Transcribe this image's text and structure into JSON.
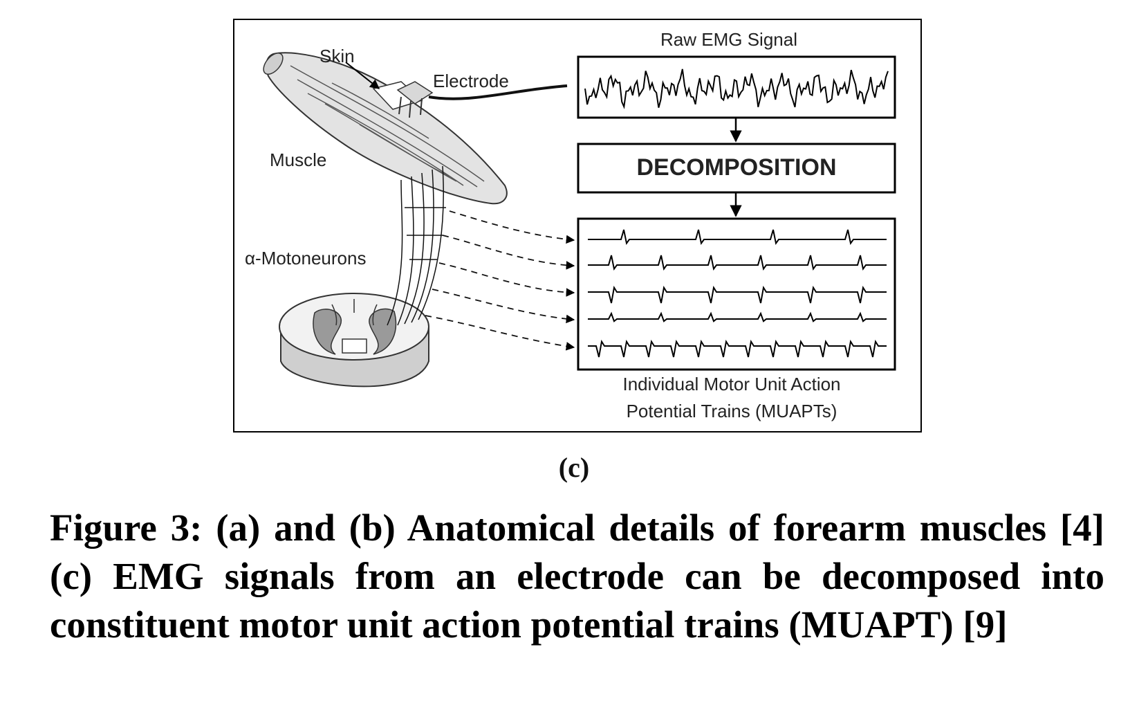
{
  "figure": {
    "labels": {
      "skin": "Skin",
      "electrode": "Electrode",
      "muscle": "Muscle",
      "motoneurons": "α-Motoneurons",
      "raw_signal": "Raw EMG Signal",
      "decomposition": "DECOMPOSITION",
      "muapt_line1": "Individual Motor Unit Action",
      "muapt_line2": "Potential Trains (MUAPTs)"
    },
    "muapt_trains": [
      {
        "spikes": 4,
        "polarity": "up"
      },
      {
        "spikes": 6,
        "polarity": "up"
      },
      {
        "spikes": 6,
        "polarity": "down"
      },
      {
        "spikes": 6,
        "polarity": "small"
      },
      {
        "spikes": 12,
        "polarity": "down"
      }
    ]
  },
  "sublabel": "(c)",
  "caption": "Figure 3: (a) and (b) Anatomical details of forearm muscles [4] (c) EMG signals from an electrode can be decomposed into constituent motor unit action potential trains (MUAPT) [9]"
}
